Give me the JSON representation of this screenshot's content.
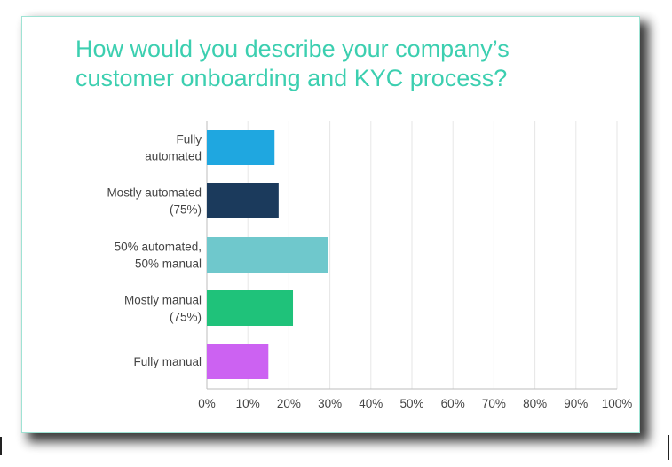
{
  "chart_data": {
    "type": "bar",
    "orientation": "horizontal",
    "title_lines": [
      "How would you describe your company’s",
      "customer onboarding and KYC process?"
    ],
    "categories": [
      [
        "Fully",
        "automated"
      ],
      [
        "Mostly automated",
        "(75%)"
      ],
      [
        "50% automated,",
        "50% manual"
      ],
      [
        "Mostly manual",
        "(75%)"
      ],
      [
        "Fully manual"
      ]
    ],
    "values": [
      16.5,
      17.5,
      29.5,
      21,
      15
    ],
    "colors": [
      "#1fa7e0",
      "#1b3a5c",
      "#6fc8cc",
      "#1fc27a",
      "#cc62f2"
    ],
    "xlim": [
      0,
      100
    ],
    "xticks": [
      0,
      10,
      20,
      30,
      40,
      50,
      60,
      70,
      80,
      90,
      100
    ],
    "xtick_labels": [
      "0%",
      "10%",
      "20%",
      "30%",
      "40%",
      "50%",
      "60%",
      "70%",
      "80%",
      "90%",
      "100%"
    ],
    "grid": true
  }
}
